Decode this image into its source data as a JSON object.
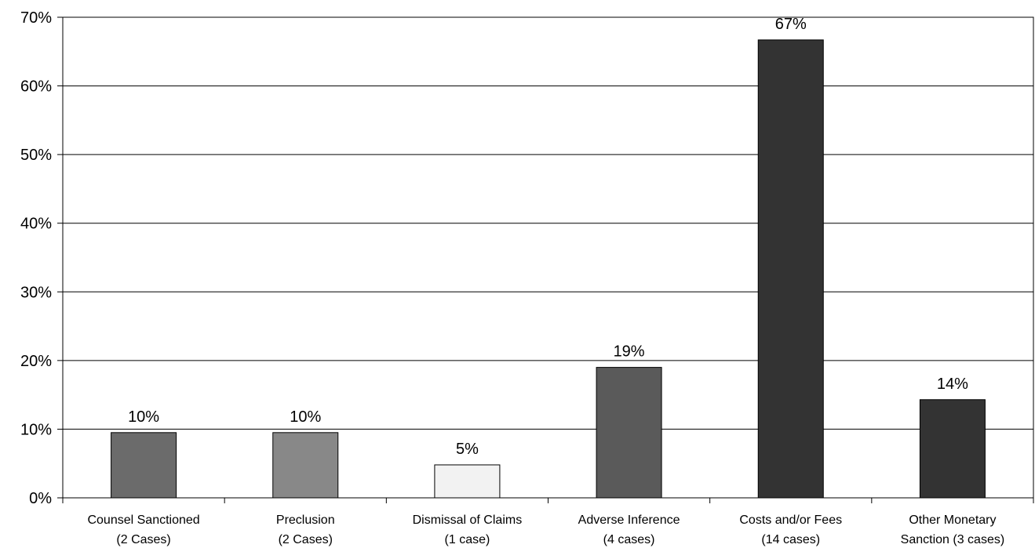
{
  "chart_data": {
    "type": "bar",
    "title": "",
    "xlabel": "",
    "ylabel": "",
    "ylim": [
      0,
      70
    ],
    "y_ticks": [
      "0%",
      "10%",
      "20%",
      "30%",
      "40%",
      "50%",
      "60%",
      "70%"
    ],
    "y_tick_values": [
      0,
      10,
      20,
      30,
      40,
      50,
      60,
      70
    ],
    "grid": true,
    "legend": "none",
    "categories": [
      [
        "Counsel Sanctioned",
        "(2 Cases)"
      ],
      [
        "Preclusion",
        "(2 Cases)"
      ],
      [
        "Dismissal of Claims",
        "(1 case)"
      ],
      [
        "Adverse Inference",
        "(4 cases)"
      ],
      [
        "Costs and/or Fees",
        "(14 cases)"
      ],
      [
        "Other Monetary",
        "Sanction (3 cases)"
      ]
    ],
    "values": [
      9.5,
      9.5,
      4.8,
      19,
      66.7,
      14.3
    ],
    "data_labels": [
      "10%",
      "10%",
      "5%",
      "19%",
      "67%",
      "14%"
    ],
    "bar_colors": [
      "#6b6b6b",
      "#888888",
      "#f2f2f2",
      "#5a5a5a",
      "#333333",
      "#333333"
    ]
  }
}
